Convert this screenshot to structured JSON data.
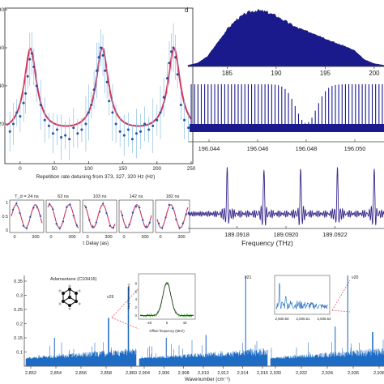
{
  "figure": {
    "panel_d_label": "d"
  },
  "chart_data": [
    {
      "id": "repetition-rate-scan",
      "type": "scatter",
      "xlabel": "Repetition rate detuning from 373, 327, 320 Hz (Hz)",
      "ylabel": "",
      "xlim": [
        -20,
        250
      ],
      "ylim": [
        0,
        80
      ],
      "x_ticks": [
        0,
        50,
        100,
        150,
        200,
        250
      ],
      "y_ticks": [
        20,
        40,
        60,
        80
      ],
      "fit": {
        "kind": "lorentzian",
        "centers": [
          15,
          120,
          225
        ],
        "amplitude": 44,
        "width": 11,
        "baseline": 15,
        "color": "#d0345a"
      },
      "points_color": "#1f4fa8",
      "errorbar_color": "#8cc0e4",
      "x": [
        -15,
        -10,
        -5,
        0,
        5,
        8,
        11,
        14,
        17,
        20,
        24,
        30,
        36,
        42,
        48,
        54,
        60,
        66,
        72,
        78,
        84,
        90,
        96,
        100,
        104,
        108,
        112,
        115,
        118,
        121,
        124,
        127,
        130,
        135,
        140,
        146,
        152,
        158,
        164,
        170,
        176,
        182,
        188,
        194,
        200,
        205,
        210,
        215,
        218,
        221,
        224,
        227,
        230,
        235,
        240,
        246
      ],
      "y": [
        16,
        20,
        26,
        24,
        31,
        36,
        45,
        54,
        57,
        50,
        40,
        30,
        22,
        19,
        15,
        17,
        13,
        14,
        12,
        18,
        15,
        17,
        20,
        26,
        30,
        38,
        48,
        55,
        60,
        56,
        48,
        42,
        32,
        26,
        20,
        16,
        14,
        17,
        12,
        15,
        16,
        20,
        17,
        19,
        22,
        26,
        34,
        44,
        52,
        58,
        60,
        55,
        46,
        30,
        22,
        18
      ]
    },
    {
      "id": "delay-scans",
      "type": "line",
      "xlabel": "τ Delay (as)",
      "x_ticks": [
        0,
        300
      ],
      "ylim": [
        0,
        1
      ],
      "y_ticks": [
        0,
        0.5,
        1
      ],
      "panels": [
        {
          "label": "T_d = 24 ns",
          "phase": 0.0
        },
        {
          "label": "63 ns",
          "phase": 0.9
        },
        {
          "label": "103 ns",
          "phase": 1.8
        },
        {
          "label": "142 ns",
          "phase": 2.6
        },
        {
          "label": "182 ns",
          "phase": 3.4
        }
      ]
    },
    {
      "id": "envelope-spectrum",
      "type": "area",
      "x_ticks": [
        185,
        190,
        195,
        200
      ],
      "xlim": [
        181,
        201
      ],
      "color": "#1a1a8c",
      "x": [
        181,
        182,
        183,
        184,
        185,
        186,
        187,
        188,
        189,
        190,
        191,
        192,
        193,
        194,
        195,
        196,
        197,
        198,
        199,
        200,
        201
      ],
      "y": [
        0.02,
        0.06,
        0.18,
        0.42,
        0.66,
        0.84,
        0.95,
        1.0,
        0.97,
        0.9,
        0.8,
        0.7,
        0.63,
        0.58,
        0.5,
        0.42,
        0.36,
        0.28,
        0.12,
        0.05,
        0.02
      ]
    },
    {
      "id": "comb-zoom-1",
      "type": "line",
      "x_ticks": [
        196.044,
        196.046,
        196.048,
        196.05
      ],
      "xlim": [
        196.0432,
        196.0512
      ],
      "color": "#1a1a8c",
      "tooth_count": 58,
      "dip_center": 196.048
    },
    {
      "id": "comb-zoom-2",
      "type": "line",
      "xlabel": "Frequency (THz)",
      "x_ticks": [
        189.0918,
        189.092,
        189.0922
      ],
      "xlim": [
        189.0916,
        189.0924
      ],
      "color": "#3a2a8c",
      "peak_positions": [
        189.09176,
        189.09191,
        189.09206,
        189.09221,
        189.09236
      ]
    },
    {
      "id": "adamantane-spectrum",
      "type": "line",
      "title": "Adamantane (C10H16)",
      "xlabel": "Wavenumber (cm⁻¹)",
      "y_ticks": [
        0.1,
        0.15,
        0.2,
        0.25,
        0.3,
        0.35
      ],
      "ylim": [
        0.05,
        0.37
      ],
      "color": "#1e6cc4",
      "segments": [
        {
          "ticks": [
            "2,852",
            "2,854",
            "2,856",
            "2,858",
            "2,860"
          ],
          "xlim": [
            2851.5,
            2861.5
          ]
        },
        {
          "ticks": [
            "2,904",
            "2,906",
            "2,908",
            "2,910",
            "2,912",
            "2,914",
            "2,916"
          ],
          "xlim": [
            2903.6,
            2917.0
          ]
        },
        {
          "ticks": [
            "2,930",
            "2,932",
            "2,934",
            "2,936",
            "2,938"
          ],
          "xlim": [
            2929.2,
            2938.6
          ]
        }
      ],
      "band_labels": [
        "ν29",
        "ν21",
        "ν20"
      ],
      "inset_lineshape": {
        "ylabel": "Abs(Transmission)",
        "xlabel": "Offset frequency (MHz)",
        "x_ticks": [
          -40,
          0,
          40
        ],
        "y_ticks": [
          0,
          2,
          4,
          6,
          8
        ],
        "ylim": [
          -0.5,
          10
        ],
        "fit_color": "#1a1a1a",
        "data_color": "#5aa84a"
      },
      "inset_zoom": {
        "x_ticks": [
          "2,936.58",
          "2,936.61",
          "2,936.64"
        ]
      }
    }
  ]
}
